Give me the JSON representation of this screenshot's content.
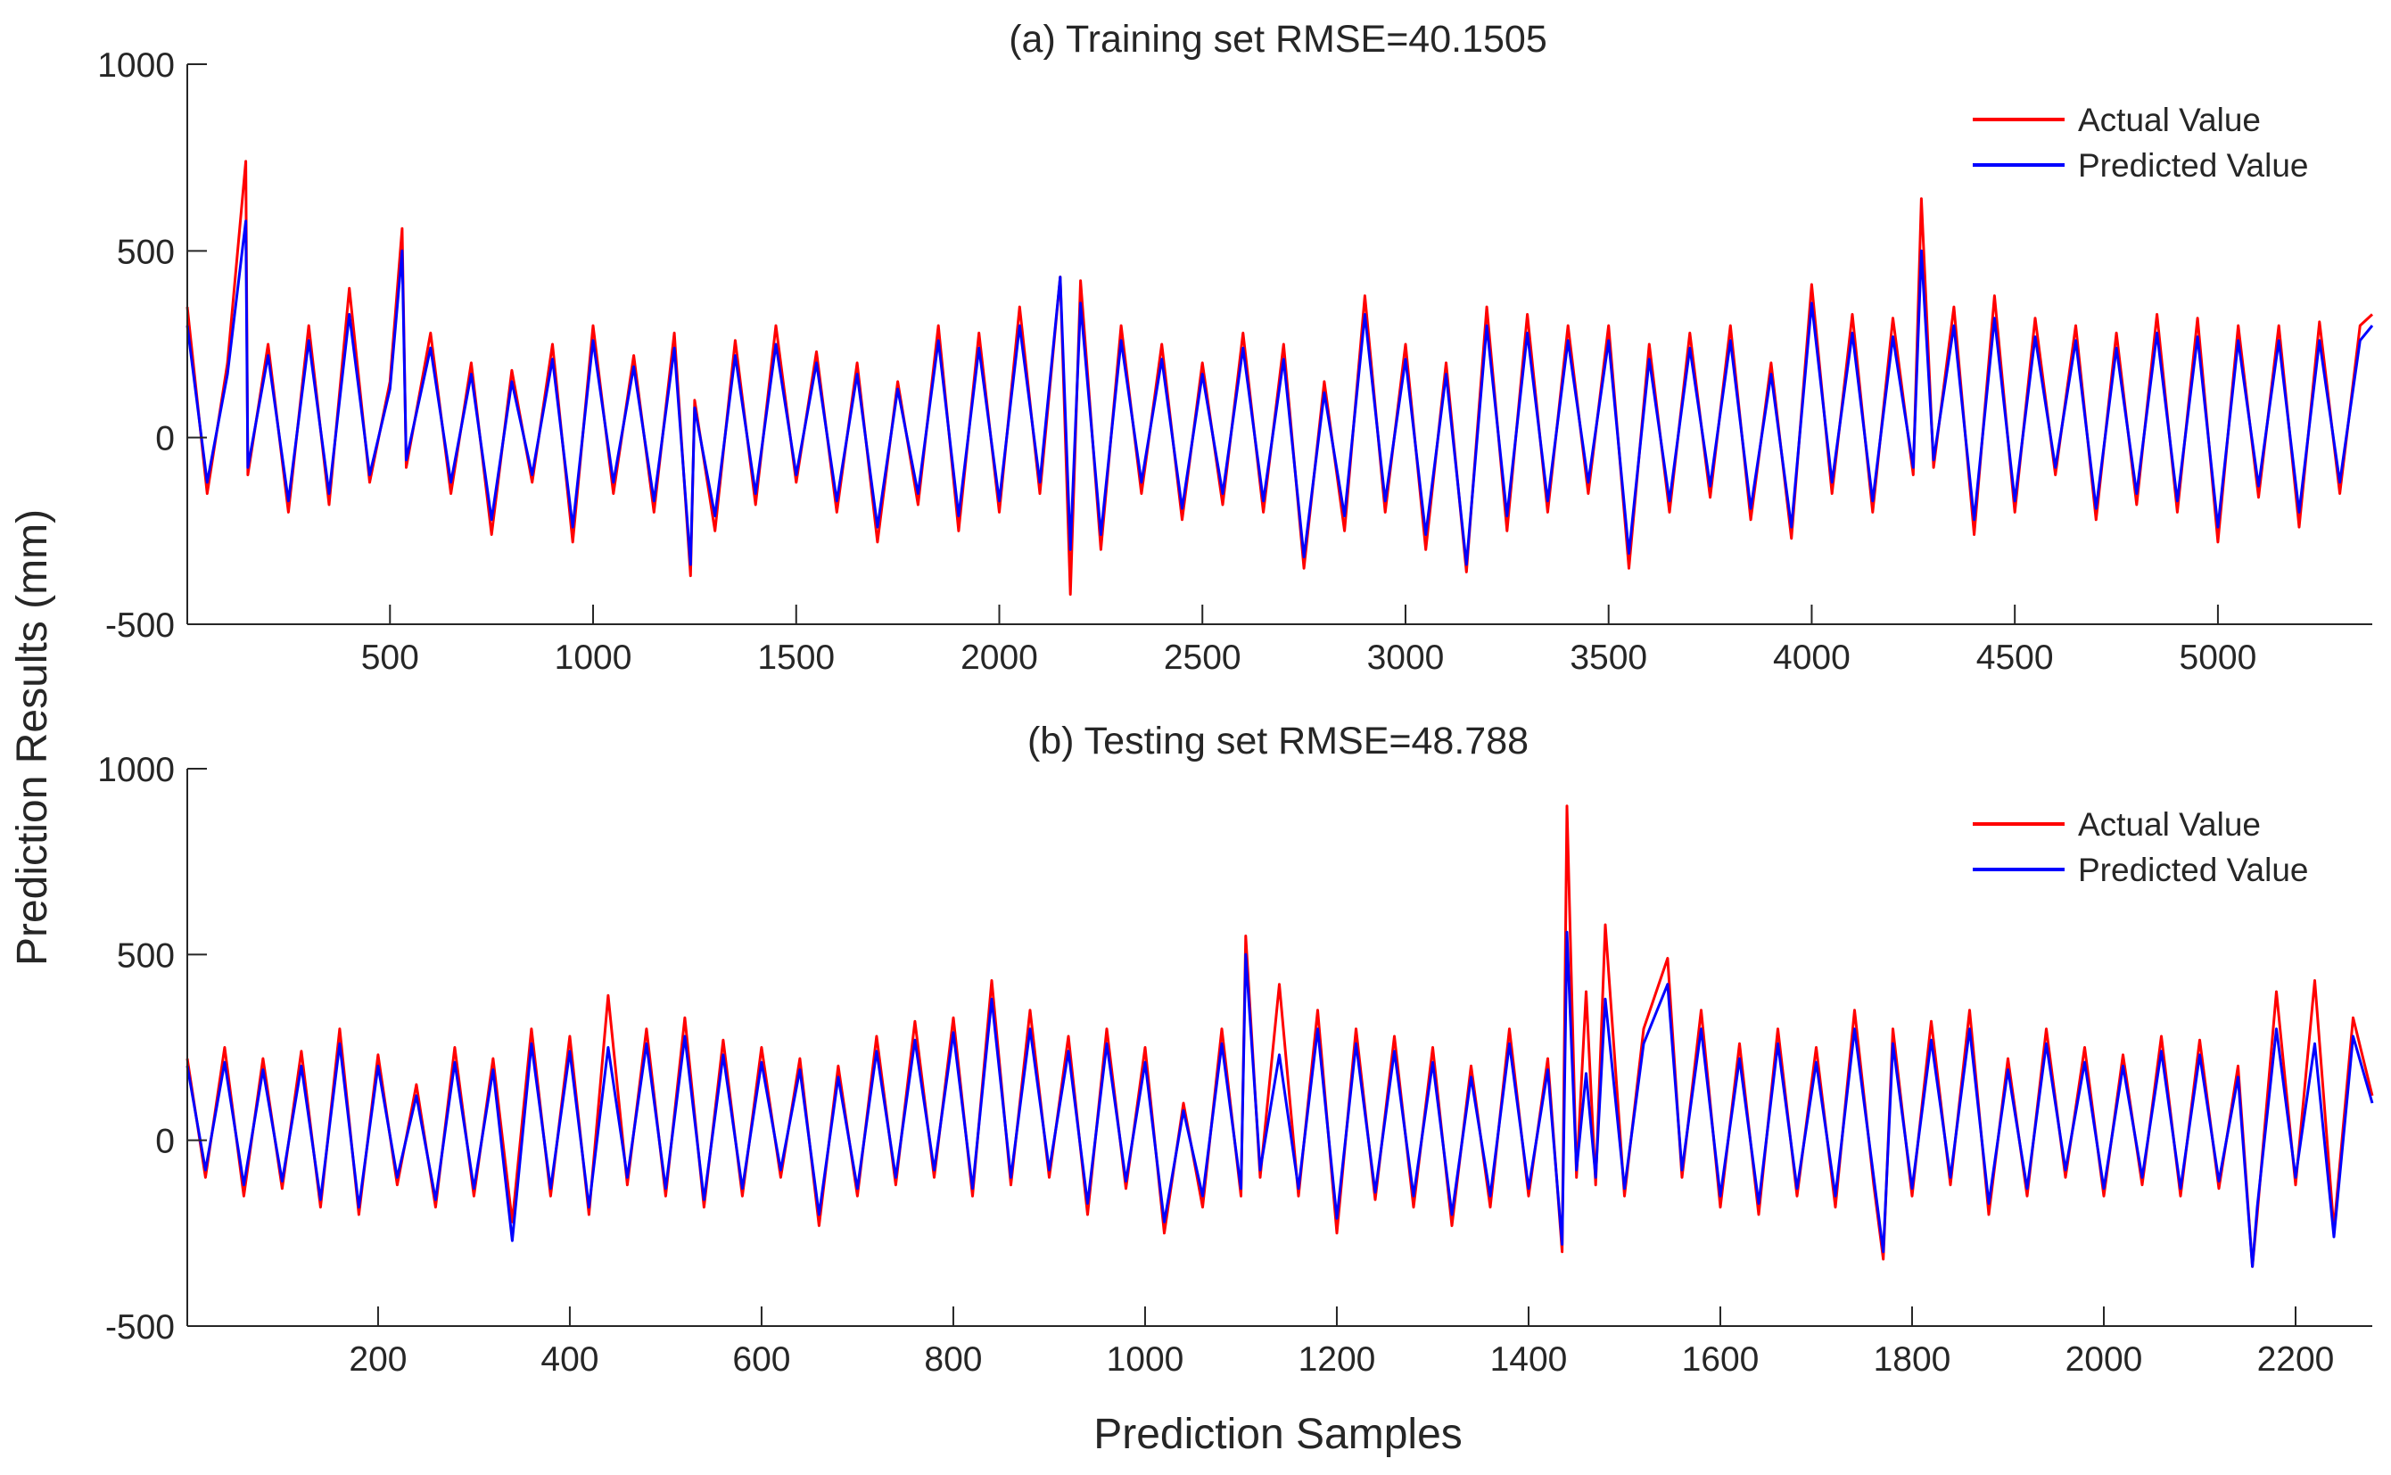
{
  "figure": {
    "ylabel": "Prediction Results (mm)",
    "xlabel": "Prediction Samples"
  },
  "colors": {
    "actual": "#ff0000",
    "predicted": "#0000ff",
    "axis": "#262626"
  },
  "chart_data": [
    {
      "type": "line",
      "title": "(a) Training set RMSE=40.1505",
      "xlabel": "",
      "ylabel": "Prediction Results (mm)",
      "xlim": [
        1,
        5380
      ],
      "ylim": [
        -500,
        1000
      ],
      "xticks": [
        500,
        1000,
        1500,
        2000,
        2500,
        3000,
        3500,
        4000,
        4500,
        5000
      ],
      "yticks": [
        -500,
        0,
        500,
        1000
      ],
      "legend": {
        "location": "top-right",
        "entries": [
          "Actual Value",
          "Predicted Value"
        ]
      },
      "series": [
        {
          "name": "Actual Value",
          "color": "#ff0000",
          "x": [
            1,
            50,
            100,
            145,
            150,
            200,
            250,
            300,
            350,
            400,
            450,
            500,
            530,
            540,
            600,
            650,
            700,
            750,
            800,
            850,
            900,
            950,
            1000,
            1050,
            1100,
            1150,
            1200,
            1240,
            1250,
            1300,
            1350,
            1400,
            1450,
            1500,
            1550,
            1600,
            1650,
            1700,
            1750,
            1800,
            1850,
            1900,
            1950,
            2000,
            2050,
            2100,
            2150,
            2175,
            2200,
            2250,
            2300,
            2350,
            2400,
            2450,
            2500,
            2550,
            2600,
            2650,
            2700,
            2750,
            2800,
            2850,
            2900,
            2950,
            3000,
            3050,
            3100,
            3150,
            3200,
            3250,
            3300,
            3350,
            3400,
            3450,
            3500,
            3550,
            3600,
            3650,
            3700,
            3750,
            3800,
            3850,
            3900,
            3950,
            4000,
            4050,
            4100,
            4150,
            4200,
            4250,
            4270,
            4300,
            4350,
            4400,
            4450,
            4500,
            4550,
            4600,
            4650,
            4700,
            4750,
            4800,
            4850,
            4900,
            4950,
            5000,
            5050,
            5100,
            5150,
            5200,
            5250,
            5300,
            5350,
            5380
          ],
          "y": [
            350,
            -150,
            200,
            740,
            -100,
            250,
            -200,
            300,
            -180,
            400,
            -120,
            150,
            560,
            -80,
            280,
            -150,
            200,
            -260,
            180,
            -120,
            250,
            -280,
            300,
            -150,
            220,
            -200,
            280,
            -370,
            100,
            -250,
            260,
            -180,
            300,
            -120,
            230,
            -200,
            200,
            -280,
            150,
            -180,
            300,
            -250,
            280,
            -200,
            350,
            -150,
            430,
            -420,
            420,
            -300,
            300,
            -150,
            250,
            -220,
            200,
            -180,
            280,
            -200,
            250,
            -350,
            150,
            -250,
            380,
            -200,
            250,
            -300,
            200,
            -360,
            350,
            -250,
            330,
            -200,
            300,
            -150,
            300,
            -350,
            250,
            -200,
            280,
            -160,
            300,
            -220,
            200,
            -270,
            410,
            -150,
            330,
            -200,
            320,
            -100,
            640,
            -80,
            350,
            -260,
            380,
            -200,
            320,
            -100,
            300,
            -220,
            280,
            -180,
            330,
            -200,
            320,
            -280,
            300,
            -160,
            300,
            -240,
            310,
            -150,
            300,
            330
          ]
        },
        {
          "name": "Predicted Value",
          "color": "#0000ff",
          "x": [
            1,
            50,
            100,
            145,
            150,
            200,
            250,
            300,
            350,
            400,
            450,
            500,
            530,
            540,
            600,
            650,
            700,
            750,
            800,
            850,
            900,
            950,
            1000,
            1050,
            1100,
            1150,
            1200,
            1240,
            1250,
            1300,
            1350,
            1400,
            1450,
            1500,
            1550,
            1600,
            1650,
            1700,
            1750,
            1800,
            1850,
            1900,
            1950,
            2000,
            2050,
            2100,
            2150,
            2175,
            2200,
            2250,
            2300,
            2350,
            2400,
            2450,
            2500,
            2550,
            2600,
            2650,
            2700,
            2750,
            2800,
            2850,
            2900,
            2950,
            3000,
            3050,
            3100,
            3150,
            3200,
            3250,
            3300,
            3350,
            3400,
            3450,
            3500,
            3550,
            3600,
            3650,
            3700,
            3750,
            3800,
            3850,
            3900,
            3950,
            4000,
            4050,
            4100,
            4150,
            4200,
            4250,
            4270,
            4300,
            4350,
            4400,
            4450,
            4500,
            4550,
            4600,
            4650,
            4700,
            4750,
            4800,
            4850,
            4900,
            4950,
            5000,
            5050,
            5100,
            5150,
            5200,
            5250,
            5300,
            5350,
            5380
          ],
          "y": [
            300,
            -120,
            170,
            580,
            -80,
            220,
            -170,
            260,
            -150,
            330,
            -100,
            130,
            500,
            -60,
            240,
            -120,
            170,
            -220,
            150,
            -100,
            210,
            -240,
            260,
            -120,
            190,
            -170,
            240,
            -340,
            80,
            -210,
            220,
            -150,
            250,
            -100,
            200,
            -170,
            170,
            -240,
            130,
            -150,
            260,
            -210,
            240,
            -170,
            300,
            -120,
            430,
            -300,
            360,
            -260,
            260,
            -120,
            210,
            -190,
            170,
            -150,
            240,
            -170,
            210,
            -320,
            120,
            -210,
            330,
            -170,
            210,
            -260,
            170,
            -340,
            300,
            -210,
            280,
            -170,
            260,
            -120,
            260,
            -310,
            210,
            -170,
            240,
            -130,
            260,
            -190,
            170,
            -240,
            360,
            -120,
            280,
            -170,
            270,
            -80,
            500,
            -60,
            300,
            -220,
            320,
            -170,
            270,
            -80,
            260,
            -190,
            240,
            -150,
            280,
            -170,
            270,
            -240,
            260,
            -130,
            260,
            -200,
            260,
            -120,
            260,
            300
          ]
        }
      ]
    },
    {
      "type": "line",
      "title": "(b) Testing set RMSE=48.788",
      "xlabel": "Prediction Samples",
      "ylabel": "Prediction Results (mm)",
      "xlim": [
        1,
        2280
      ],
      "ylim": [
        -500,
        1000
      ],
      "xticks": [
        200,
        400,
        600,
        800,
        1000,
        1200,
        1400,
        1600,
        1800,
        2000,
        2200
      ],
      "yticks": [
        -500,
        0,
        500,
        1000
      ],
      "legend": {
        "location": "top-right",
        "entries": [
          "Actual Value",
          "Predicted Value"
        ]
      },
      "series": [
        {
          "name": "Actual Value",
          "color": "#ff0000",
          "x": [
            1,
            20,
            40,
            60,
            80,
            100,
            120,
            140,
            160,
            180,
            200,
            220,
            240,
            260,
            280,
            300,
            320,
            340,
            360,
            380,
            400,
            420,
            440,
            460,
            480,
            500,
            520,
            540,
            560,
            580,
            600,
            620,
            640,
            660,
            680,
            700,
            720,
            740,
            760,
            780,
            800,
            820,
            840,
            860,
            880,
            900,
            920,
            940,
            960,
            980,
            1000,
            1020,
            1040,
            1060,
            1080,
            1100,
            1105,
            1120,
            1140,
            1160,
            1180,
            1200,
            1220,
            1240,
            1260,
            1280,
            1300,
            1320,
            1340,
            1360,
            1380,
            1400,
            1420,
            1435,
            1440,
            1450,
            1460,
            1470,
            1480,
            1500,
            1520,
            1545,
            1560,
            1580,
            1600,
            1620,
            1640,
            1660,
            1680,
            1700,
            1720,
            1740,
            1760,
            1770,
            1780,
            1800,
            1820,
            1840,
            1860,
            1880,
            1900,
            1920,
            1940,
            1960,
            1980,
            2000,
            2020,
            2040,
            2060,
            2080,
            2100,
            2120,
            2140,
            2155,
            2160,
            2180,
            2200,
            2220,
            2240,
            2260,
            2280
          ],
          "y": [
            220,
            -100,
            250,
            -150,
            220,
            -130,
            240,
            -180,
            300,
            -200,
            230,
            -120,
            150,
            -180,
            250,
            -150,
            220,
            -220,
            300,
            -150,
            280,
            -200,
            390,
            -120,
            300,
            -150,
            330,
            -180,
            270,
            -150,
            250,
            -100,
            220,
            -230,
            200,
            -150,
            280,
            -120,
            320,
            -100,
            330,
            -150,
            430,
            -120,
            350,
            -100,
            280,
            -200,
            300,
            -130,
            250,
            -250,
            100,
            -180,
            300,
            -150,
            550,
            -100,
            420,
            -150,
            350,
            -250,
            300,
            -160,
            280,
            -180,
            250,
            -230,
            200,
            -180,
            300,
            -150,
            220,
            -300,
            900,
            -100,
            400,
            -120,
            580,
            -150,
            300,
            490,
            -100,
            350,
            -180,
            260,
            -200,
            300,
            -150,
            250,
            -180,
            350,
            -120,
            -320,
            300,
            -150,
            320,
            -120,
            350,
            -200,
            220,
            -150,
            300,
            -100,
            250,
            -150,
            230,
            -120,
            280,
            -150,
            270,
            -130,
            200,
            -340,
            -200,
            400,
            -120,
            430,
            -240,
            330,
            120
          ]
        },
        {
          "name": "Predicted Value",
          "color": "#0000ff",
          "x": [
            1,
            20,
            40,
            60,
            80,
            100,
            120,
            140,
            160,
            180,
            200,
            220,
            240,
            260,
            280,
            300,
            320,
            340,
            360,
            380,
            400,
            420,
            440,
            460,
            480,
            500,
            520,
            540,
            560,
            580,
            600,
            620,
            640,
            660,
            680,
            700,
            720,
            740,
            760,
            780,
            800,
            820,
            840,
            860,
            880,
            900,
            920,
            940,
            960,
            980,
            1000,
            1020,
            1040,
            1060,
            1080,
            1100,
            1105,
            1120,
            1140,
            1160,
            1180,
            1200,
            1220,
            1240,
            1260,
            1280,
            1300,
            1320,
            1340,
            1360,
            1380,
            1400,
            1420,
            1435,
            1440,
            1450,
            1460,
            1470,
            1480,
            1500,
            1520,
            1545,
            1560,
            1580,
            1600,
            1620,
            1640,
            1660,
            1680,
            1700,
            1720,
            1740,
            1760,
            1770,
            1780,
            1800,
            1820,
            1840,
            1860,
            1880,
            1900,
            1920,
            1940,
            1960,
            1980,
            2000,
            2020,
            2040,
            2060,
            2080,
            2100,
            2120,
            2140,
            2155,
            2160,
            2180,
            2200,
            2220,
            2240,
            2260,
            2280
          ],
          "y": [
            200,
            -80,
            210,
            -120,
            190,
            -110,
            200,
            -160,
            260,
            -180,
            200,
            -100,
            120,
            -160,
            210,
            -130,
            190,
            -270,
            260,
            -130,
            240,
            -180,
            250,
            -100,
            260,
            -130,
            280,
            -160,
            230,
            -130,
            210,
            -80,
            190,
            -200,
            170,
            -130,
            240,
            -100,
            270,
            -80,
            290,
            -130,
            380,
            -100,
            300,
            -80,
            240,
            -170,
            260,
            -110,
            210,
            -220,
            80,
            -150,
            260,
            -130,
            500,
            -80,
            230,
            -130,
            300,
            -210,
            260,
            -140,
            240,
            -150,
            210,
            -200,
            170,
            -150,
            260,
            -130,
            190,
            -280,
            560,
            -80,
            180,
            -100,
            380,
            -130,
            260,
            420,
            -80,
            300,
            -150,
            220,
            -170,
            260,
            -130,
            210,
            -150,
            300,
            -100,
            -300,
            260,
            -130,
            270,
            -100,
            300,
            -170,
            190,
            -130,
            260,
            -80,
            210,
            -130,
            200,
            -100,
            240,
            -130,
            230,
            -110,
            170,
            -340,
            -180,
            300,
            -100,
            260,
            -260,
            280,
            100
          ]
        }
      ]
    }
  ]
}
